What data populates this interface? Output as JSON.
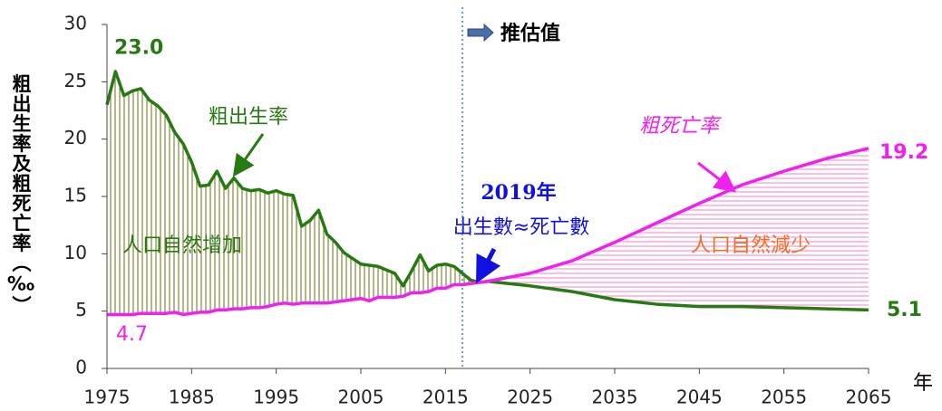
{
  "chart_data": {
    "type": "line",
    "ylabel": "粗出生率及粗死亡率（‰）",
    "xlabel": "年",
    "x": [
      1975,
      1976,
      1977,
      1978,
      1979,
      1980,
      1981,
      1982,
      1983,
      1984,
      1985,
      1986,
      1987,
      1988,
      1989,
      1990,
      1991,
      1992,
      1993,
      1994,
      1995,
      1996,
      1997,
      1998,
      1999,
      2000,
      2001,
      2002,
      2003,
      2004,
      2005,
      2006,
      2007,
      2008,
      2009,
      2010,
      2011,
      2012,
      2013,
      2014,
      2015,
      2016,
      2017,
      2018,
      2019,
      2020,
      2025,
      2030,
      2035,
      2040,
      2045,
      2050,
      2055,
      2060,
      2065
    ],
    "series": [
      {
        "name": "粗出生率",
        "color": "#267a12",
        "values": [
          23.0,
          25.9,
          23.8,
          24.2,
          24.4,
          23.4,
          22.9,
          22.1,
          20.6,
          19.6,
          18.0,
          15.9,
          16.0,
          17.2,
          15.7,
          16.6,
          15.7,
          15.5,
          15.6,
          15.3,
          15.5,
          15.2,
          15.1,
          12.4,
          12.9,
          13.8,
          11.7,
          11.0,
          10.1,
          9.6,
          9.1,
          9.0,
          8.9,
          8.6,
          8.3,
          7.2,
          8.5,
          9.9,
          8.5,
          9.0,
          9.1,
          8.9,
          8.3,
          7.7,
          7.5,
          7.6,
          7.2,
          6.7,
          6.0,
          5.6,
          5.4,
          5.4,
          5.3,
          5.2,
          5.1
        ],
        "value_labels": [
          "23.0",
          null,
          null,
          null,
          null,
          null,
          null,
          null,
          null,
          null,
          null,
          null,
          null,
          null,
          null,
          null,
          null,
          null,
          null,
          null,
          null,
          null,
          null,
          null,
          null,
          null,
          null,
          null,
          null,
          null,
          null,
          null,
          null,
          null,
          null,
          null,
          null,
          null,
          null,
          null,
          null,
          null,
          null,
          null,
          null,
          null,
          null,
          null,
          null,
          null,
          null,
          null,
          null,
          null,
          null
        ]
      },
      {
        "name": "粗死亡率",
        "color": "#f020f0",
        "values": [
          4.7,
          4.7,
          4.7,
          4.7,
          4.8,
          4.8,
          4.8,
          4.8,
          4.9,
          4.7,
          4.8,
          4.9,
          4.9,
          5.1,
          5.1,
          5.2,
          5.2,
          5.3,
          5.3,
          5.4,
          5.6,
          5.7,
          5.6,
          5.7,
          5.7,
          5.7,
          5.7,
          5.8,
          5.9,
          6.0,
          6.1,
          5.9,
          6.2,
          6.2,
          6.2,
          6.3,
          6.6,
          6.6,
          6.7,
          7.0,
          7.0,
          7.3,
          7.3,
          7.4,
          7.5,
          7.6,
          8.3,
          9.4,
          11.0,
          12.7,
          14.4,
          16.0,
          17.2,
          18.3,
          19.2
        ],
        "value_labels": [
          null,
          null,
          null,
          null,
          null,
          null,
          null,
          null,
          null,
          null,
          null,
          null,
          null,
          null,
          null,
          null,
          null,
          null,
          null,
          null,
          null,
          null,
          null,
          null,
          null,
          null,
          null,
          null,
          null,
          null,
          null,
          null,
          null,
          null,
          null,
          null,
          null,
          null,
          null,
          null,
          null,
          null,
          null,
          null,
          null,
          null,
          null,
          null,
          null,
          null,
          null,
          null,
          null,
          null,
          "19.2"
        ]
      }
    ],
    "end_labels": {
      "birth_end": "5.1",
      "death_start": "4.7"
    },
    "projection_start": 2017,
    "projection_label": "推估值",
    "increase_label": "人口自然增加",
    "decrease_label": "人口自然減少",
    "cross_year_label": "2019年",
    "cross_label": "出生數≈死亡數",
    "xlim": [
      1975,
      2065
    ],
    "xticks": [
      1975,
      1985,
      1995,
      2005,
      2015,
      2025,
      2035,
      2045,
      2055,
      2065
    ],
    "ylim": [
      0,
      30
    ],
    "yticks": [
      0,
      5,
      10,
      15,
      20,
      25,
      30
    ],
    "grid": false
  }
}
